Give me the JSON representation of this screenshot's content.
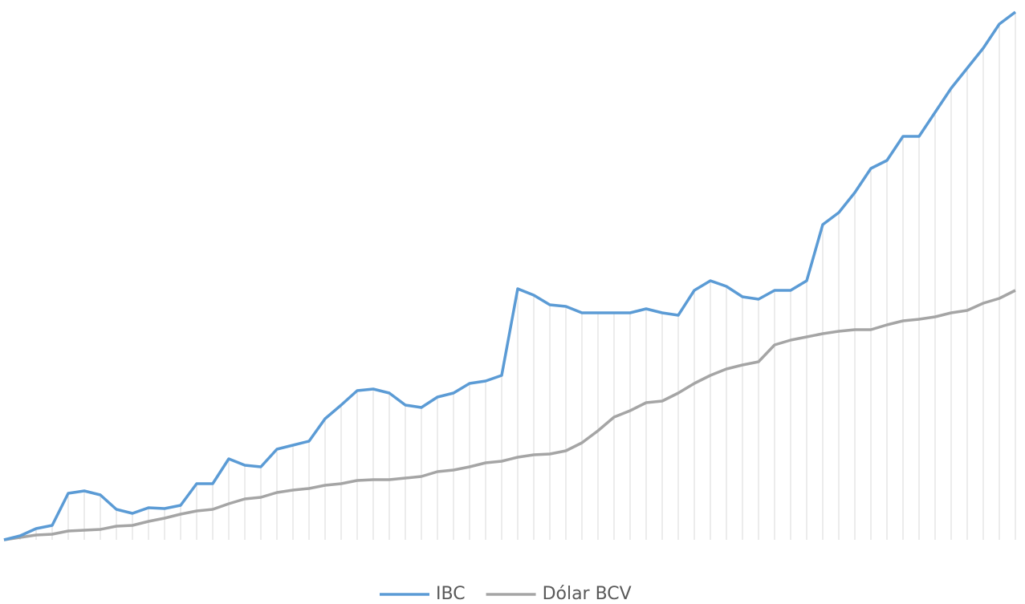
{
  "chart_data": {
    "type": "line",
    "categories": [
      null,
      null,
      null,
      null,
      null,
      null,
      null,
      null,
      null,
      null,
      null,
      null,
      null,
      null,
      null,
      null,
      null,
      null,
      null,
      null,
      null,
      null,
      null,
      null,
      null,
      null,
      null,
      null,
      null,
      null,
      null,
      null,
      null,
      null,
      null,
      null,
      null,
      null,
      null,
      null,
      null,
      null,
      null,
      null,
      null,
      null,
      null,
      null,
      null,
      null,
      null,
      null,
      null,
      null,
      null,
      null,
      null,
      null,
      null,
      null,
      null,
      null,
      null,
      null
    ],
    "series": [
      {
        "name": "IBC",
        "color": "#5b9bd5",
        "values": [
          0,
          5,
          14,
          18,
          58,
          61,
          56,
          38,
          33,
          40,
          39,
          43,
          70,
          70,
          101,
          93,
          91,
          113,
          118,
          123,
          151,
          168,
          186,
          188,
          183,
          168,
          165,
          178,
          183,
          195,
          198,
          205,
          313,
          305,
          293,
          291,
          283,
          283,
          283,
          283,
          288,
          283,
          280,
          311,
          323,
          316,
          303,
          300,
          311,
          311,
          323,
          393,
          408,
          433,
          463,
          473,
          503,
          503,
          533,
          563,
          588,
          613,
          643,
          658
        ]
      },
      {
        "name": "Dólar BCV",
        "color": "#a5a5a5",
        "values": [
          0,
          3,
          6,
          7,
          11,
          12,
          13,
          17,
          18,
          23,
          27,
          32,
          36,
          38,
          45,
          51,
          53,
          59,
          62,
          64,
          68,
          70,
          74,
          75,
          75,
          77,
          79,
          85,
          87,
          91,
          96,
          98,
          103,
          106,
          107,
          111,
          121,
          136,
          153,
          161,
          171,
          173,
          183,
          195,
          205,
          213,
          218,
          222,
          243,
          249,
          253,
          257,
          260,
          262,
          262,
          268,
          273,
          275,
          278,
          283,
          286,
          295,
          301,
          311
        ]
      }
    ],
    "ylim": [
      0,
      663
    ],
    "drop_lines": true,
    "legend": "bottom"
  }
}
